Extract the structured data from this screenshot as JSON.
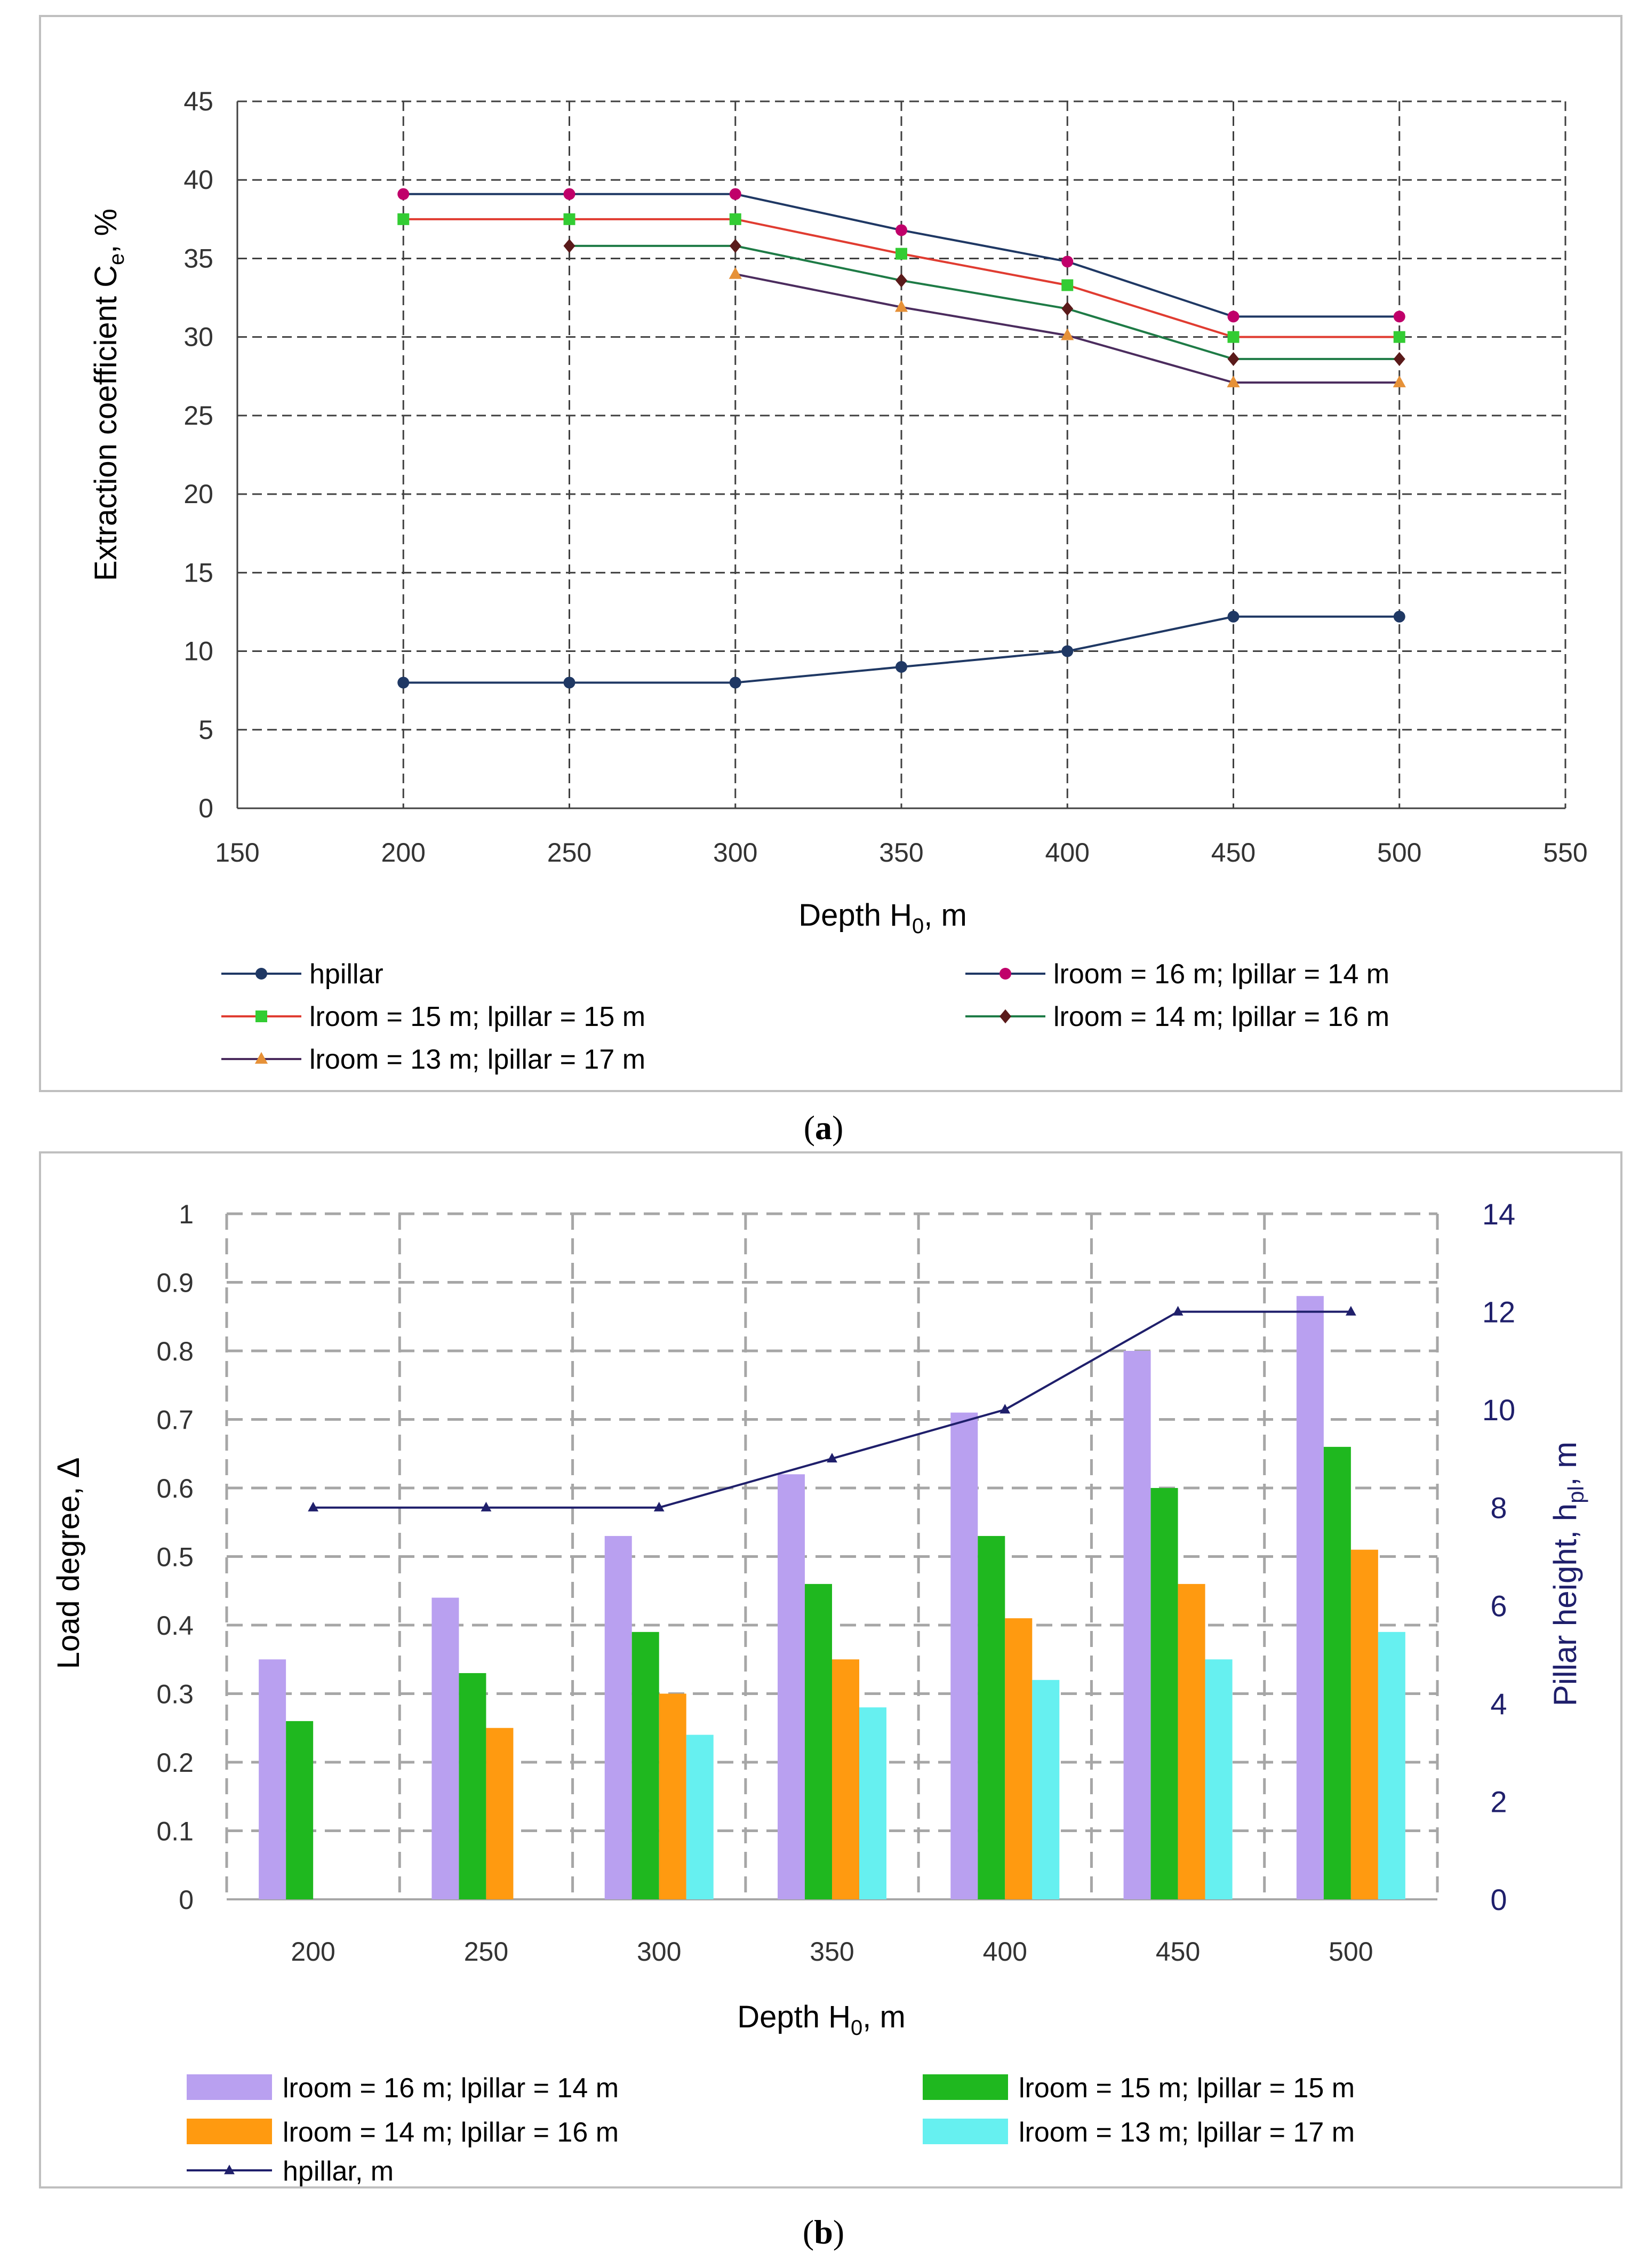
{
  "chart_data": [
    {
      "type": "line",
      "caption": "a",
      "x": [
        200,
        250,
        300,
        350,
        400,
        450,
        500
      ],
      "xlabel": "Depth H0, m",
      "ylabel": "Extraction coefficient Ce, %",
      "xlim": [
        150,
        550
      ],
      "ylim": [
        0,
        45
      ],
      "xticks": [
        150,
        200,
        250,
        300,
        350,
        400,
        450,
        500,
        550
      ],
      "yticks": [
        0,
        5,
        10,
        15,
        20,
        25,
        30,
        35,
        40,
        45
      ],
      "grid": true,
      "legend_position": "bottom",
      "series": [
        {
          "name": "hpillar",
          "values": [
            8,
            8,
            8,
            9,
            10,
            12.2,
            12.2
          ],
          "line_color": "#1f3864",
          "marker": "circle",
          "marker_color": "#1f3864"
        },
        {
          "name": "lroom = 16 m; lpillar = 14 m",
          "values": [
            39.1,
            39.1,
            39.1,
            36.8,
            34.8,
            31.3,
            31.3
          ],
          "line_color": "#1f3864",
          "marker": "circle",
          "marker_color": "#c0006a"
        },
        {
          "name": "lroom = 15 m; lpillar = 15 m",
          "values": [
            37.5,
            37.5,
            37.5,
            35.3,
            33.3,
            30.0,
            30.0
          ],
          "line_color": "#e03c31",
          "marker": "square",
          "marker_color": "#33cc33"
        },
        {
          "name": "lroom = 14 m; lpillar = 16 m",
          "values": [
            null,
            35.8,
            35.8,
            33.6,
            31.8,
            28.6,
            28.6
          ],
          "line_color": "#1e7b46",
          "marker": "diamond",
          "marker_color": "#5a1a1a"
        },
        {
          "name": "lroom = 13 m; lpillar = 17 m",
          "values": [
            null,
            null,
            34.0,
            31.9,
            30.1,
            27.1,
            27.1
          ],
          "line_color": "#4b2c5e",
          "marker": "triangle",
          "marker_color": "#e69138"
        }
      ]
    },
    {
      "type": "bar",
      "caption": "b",
      "categories": [
        "200",
        "250",
        "300",
        "350",
        "400",
        "450",
        "500"
      ],
      "xlabel": "Depth H0, m",
      "ylabel": "Load degree, Δ",
      "ylabel_right": "Pillar height, hpl, m",
      "ylim": [
        0,
        1
      ],
      "ylim_right": [
        0,
        14
      ],
      "yticks": [
        "0",
        "0.1",
        "0.2",
        "0.3",
        "0.4",
        "0.5",
        "0.6",
        "0.7",
        "0.8",
        "0.9",
        "1"
      ],
      "yticks_right": [
        0,
        2,
        4,
        6,
        8,
        10,
        12,
        14
      ],
      "grid": true,
      "legend_position": "bottom",
      "series": [
        {
          "name": "lroom = 16 m; lpillar = 14 m",
          "values": [
            0.35,
            0.44,
            0.53,
            0.62,
            0.71,
            0.8,
            0.88
          ],
          "color": "#b9a0f0"
        },
        {
          "name": "lroom = 15 m; lpillar = 15 m",
          "values": [
            0.26,
            0.33,
            0.39,
            0.46,
            0.53,
            0.6,
            0.66
          ],
          "color": "#1fb81f"
        },
        {
          "name": "lroom = 14 m; lpillar = 16 m",
          "values": [
            null,
            0.25,
            0.3,
            0.35,
            0.41,
            0.46,
            0.51
          ],
          "color": "#ff9a10"
        },
        {
          "name": "lroom = 13 m; lpillar = 17 m",
          "values": [
            null,
            null,
            0.24,
            0.28,
            0.32,
            0.35,
            0.39
          ],
          "color": "#66f0f0"
        }
      ],
      "line_series": {
        "name": "hpillar, m",
        "values": [
          8,
          8,
          8,
          9,
          10,
          12,
          12
        ],
        "color": "#1f1f6b",
        "axis": "right",
        "marker": "triangle"
      }
    }
  ],
  "text": {
    "a_ylabel_main": "Extraction coefficient C",
    "a_ylabel_sub": "e",
    "a_ylabel_tail": ", %",
    "a_xlabel_main": "Depth H",
    "a_xlabel_sub": "0",
    "a_xlabel_tail": ", m",
    "a_caption_open": "(",
    "a_caption_letter": "a",
    "a_caption_close": ")",
    "b_ylabel": "Load degree, Δ",
    "b_ylabel_right_main": "Pillar height, h",
    "b_ylabel_right_sub": "pl",
    "b_ylabel_right_tail": ", m",
    "b_xlabel_main": "Depth H",
    "b_xlabel_sub": "0",
    "b_xlabel_tail": ", m",
    "b_caption_open": "(",
    "b_caption_letter": "b",
    "b_caption_close": ")"
  }
}
